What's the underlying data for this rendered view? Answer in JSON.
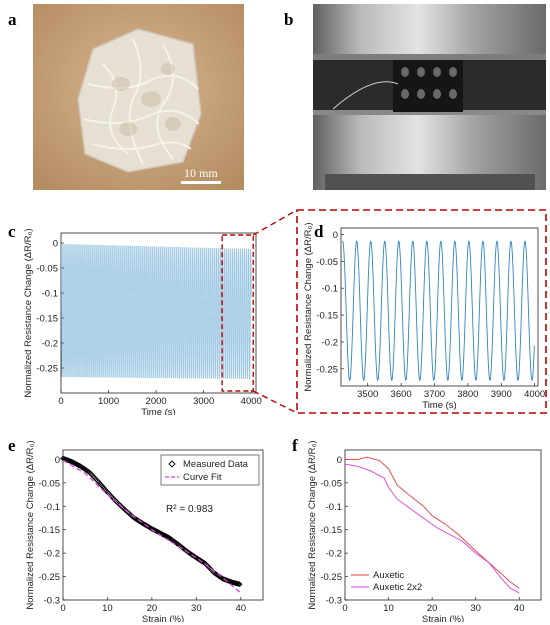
{
  "panel_labels": {
    "a": "a",
    "b": "b",
    "c": "c",
    "d": "d",
    "e": "e",
    "f": "f"
  },
  "photos": {
    "a": {
      "scale_bar_label": "10 mm",
      "colors": {
        "background": "#c9a57c",
        "object": "#e6e2d6"
      }
    },
    "b": {
      "colors": {
        "metal": "#a8a9ab",
        "lattice": "#1c1c1c",
        "background": "#3a3a3a"
      }
    }
  },
  "inset_box_color": "#c00000",
  "chart_data": [
    {
      "id": "c",
      "type": "line",
      "xlabel": "Time (s)",
      "ylabel": "Normalized  Resistance  Change  (ΔR/R₀)",
      "xlim": [
        0,
        4100
      ],
      "ylim": [
        -0.3,
        0.02
      ],
      "xticks": [
        0,
        1000,
        2000,
        3000,
        4000
      ],
      "xtick_labels": [
        "0",
        "1000",
        "2000",
        "3000",
        "4000"
      ],
      "yticks": [
        0,
        -0.05,
        -0.1,
        -0.15,
        -0.2,
        -0.25
      ],
      "ytick_labels": [
        "0",
        "-0.05",
        "-0.1",
        "-0.15",
        "-0.2",
        "-0.25"
      ],
      "series": [
        {
          "color": "#2e86c1",
          "t_start": 0,
          "t_end": 4000,
          "period": 42,
          "upper_start": -0.002,
          "upper_end": -0.012,
          "lower_start": -0.268,
          "lower_end": -0.272
        }
      ],
      "highlight": {
        "x_range": [
          3430,
          4000
        ],
        "color": "#c00000"
      }
    },
    {
      "id": "d",
      "type": "line",
      "xlabel": "Time (s)",
      "ylabel": "Normalized  Resistance  Change  (ΔR/R₀)",
      "xlim": [
        3420,
        4010
      ],
      "ylim": [
        -0.282,
        0.012
      ],
      "xticks": [
        3500,
        3600,
        3700,
        3800,
        3900,
        4000
      ],
      "xtick_labels": [
        "3500",
        "3600",
        "3700",
        "3800",
        "3900",
        "4000"
      ],
      "yticks": [
        0,
        -0.05,
        -0.1,
        -0.15,
        -0.2,
        -0.25
      ],
      "ytick_labels": [
        "0",
        "-0.05",
        "-0.1",
        "-0.15",
        "-0.2",
        "-0.25"
      ],
      "series": [
        {
          "color": "#2e86c1",
          "t_start": 3425,
          "t_end": 4000,
          "period": 42,
          "upper": -0.012,
          "lower": -0.272
        }
      ]
    },
    {
      "id": "e",
      "type": "scatter",
      "xlabel": "Strain (%)",
      "ylabel": "Normalized  Resistance  Change  (ΔR/R₀)",
      "xlim": [
        0,
        45
      ],
      "ylim": [
        -0.3,
        0.02
      ],
      "xticks": [
        0,
        10,
        20,
        30,
        40
      ],
      "xtick_labels": [
        "0",
        "10",
        "20",
        "30",
        "40"
      ],
      "yticks": [
        0,
        -0.05,
        -0.1,
        -0.15,
        -0.2,
        -0.25,
        -0.3
      ],
      "ytick_labels": [
        "0",
        "-0.05",
        "-0.1",
        "-0.15",
        "-0.2",
        "-0.25",
        "-0.3"
      ],
      "annotation": "R² = 0.983",
      "series": [
        {
          "name": "Measured Data",
          "color": "#000000",
          "marker": "diamond",
          "points": [
            [
              0,
              0.002
            ],
            [
              2,
              -0.005
            ],
            [
              4,
              -0.015
            ],
            [
              6,
              -0.028
            ],
            [
              8,
              -0.048
            ],
            [
              10,
              -0.07
            ],
            [
              12,
              -0.09
            ],
            [
              14,
              -0.108
            ],
            [
              16,
              -0.125
            ],
            [
              18,
              -0.137
            ],
            [
              20,
              -0.148
            ],
            [
              22,
              -0.158
            ],
            [
              24,
              -0.168
            ],
            [
              26,
              -0.182
            ],
            [
              28,
              -0.197
            ],
            [
              30,
              -0.21
            ],
            [
              32,
              -0.222
            ],
            [
              34,
              -0.242
            ],
            [
              36,
              -0.255
            ],
            [
              38,
              -0.262
            ],
            [
              40,
              -0.267
            ]
          ]
        },
        {
          "name": "Curve Fit",
          "color": "#e040e0",
          "dash": true,
          "points": [
            [
              0,
              -0.002
            ],
            [
              5,
              -0.03
            ],
            [
              10,
              -0.075
            ],
            [
              15,
              -0.115
            ],
            [
              20,
              -0.15
            ],
            [
              25,
              -0.18
            ],
            [
              30,
              -0.21
            ],
            [
              35,
              -0.245
            ],
            [
              40,
              -0.285
            ]
          ]
        }
      ],
      "legend_position": "top-right"
    },
    {
      "id": "f",
      "type": "line",
      "xlabel": "Strain (%)",
      "ylabel": "Normalized  Resistance  Change  (ΔR/R₀)",
      "xlim": [
        0,
        45
      ],
      "ylim": [
        -0.3,
        0.02
      ],
      "xticks": [
        0,
        10,
        20,
        30,
        40
      ],
      "xtick_labels": [
        "0",
        "10",
        "20",
        "30",
        "40"
      ],
      "yticks": [
        0,
        -0.05,
        -0.1,
        -0.15,
        -0.2,
        -0.25,
        -0.3
      ],
      "ytick_labels": [
        "0",
        "-0.05",
        "-0.1",
        "-0.15",
        "-0.2",
        "-0.25",
        "-0.3"
      ],
      "series": [
        {
          "name": "Auxetic",
          "color": "#e04040",
          "points": [
            [
              0,
              0.0
            ],
            [
              3,
              0.0
            ],
            [
              5,
              0.005
            ],
            [
              8,
              -0.003
            ],
            [
              10,
              -0.02
            ],
            [
              12,
              -0.055
            ],
            [
              15,
              -0.078
            ],
            [
              18,
              -0.1
            ],
            [
              20,
              -0.12
            ],
            [
              23,
              -0.138
            ],
            [
              26,
              -0.16
            ],
            [
              30,
              -0.195
            ],
            [
              33,
              -0.22
            ],
            [
              36,
              -0.245
            ],
            [
              38,
              -0.262
            ],
            [
              40,
              -0.275
            ]
          ]
        },
        {
          "name": "Auxetic 2x2",
          "color": "#e040e0",
          "points": [
            [
              0,
              -0.01
            ],
            [
              3,
              -0.015
            ],
            [
              6,
              -0.025
            ],
            [
              9,
              -0.04
            ],
            [
              10,
              -0.06
            ],
            [
              12,
              -0.085
            ],
            [
              15,
              -0.105
            ],
            [
              18,
              -0.125
            ],
            [
              21,
              -0.145
            ],
            [
              24,
              -0.16
            ],
            [
              27,
              -0.175
            ],
            [
              30,
              -0.2
            ],
            [
              33,
              -0.22
            ],
            [
              36,
              -0.255
            ],
            [
              38,
              -0.275
            ],
            [
              40,
              -0.285
            ]
          ]
        }
      ],
      "legend_position": "bottom-left"
    }
  ]
}
